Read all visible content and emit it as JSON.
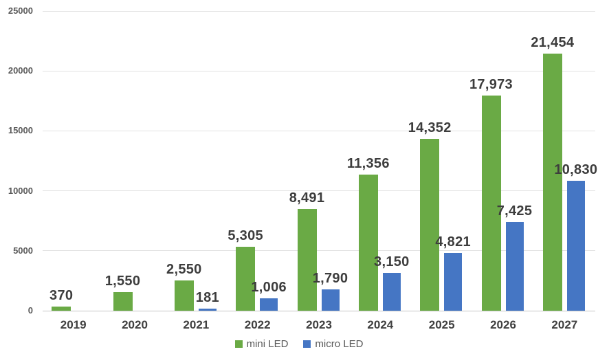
{
  "chart_data": {
    "type": "bar",
    "title": "",
    "xlabel": "",
    "ylabel": "",
    "categories": [
      "2019",
      "2020",
      "2021",
      "2022",
      "2023",
      "2024",
      "2025",
      "2026",
      "2027"
    ],
    "series": [
      {
        "name": "mini LED",
        "color": "#6aaa45",
        "values": [
          370,
          1550,
          2550,
          5305,
          8491,
          11356,
          14352,
          17973,
          21454
        ],
        "labels": [
          "370",
          "1,550",
          "2,550",
          "5,305",
          "8,491",
          "11,356",
          "14,352",
          "17,973",
          "21,454"
        ]
      },
      {
        "name": "micro LED",
        "color": "#4576c4",
        "values": [
          null,
          null,
          181,
          1006,
          1790,
          3150,
          4821,
          7425,
          10830
        ],
        "labels": [
          null,
          null,
          "181",
          "1,006",
          "1,790",
          "3,150",
          "4,821",
          "7,425",
          "10,830"
        ]
      }
    ],
    "ylim": [
      0,
      25000
    ],
    "yticks": [
      0,
      5000,
      10000,
      15000,
      20000,
      25000
    ],
    "ytick_labels": [
      "0",
      "5000",
      "10000",
      "15000",
      "20000",
      "25000"
    ],
    "grid": "horizontal",
    "legend_position": "bottom-center"
  }
}
